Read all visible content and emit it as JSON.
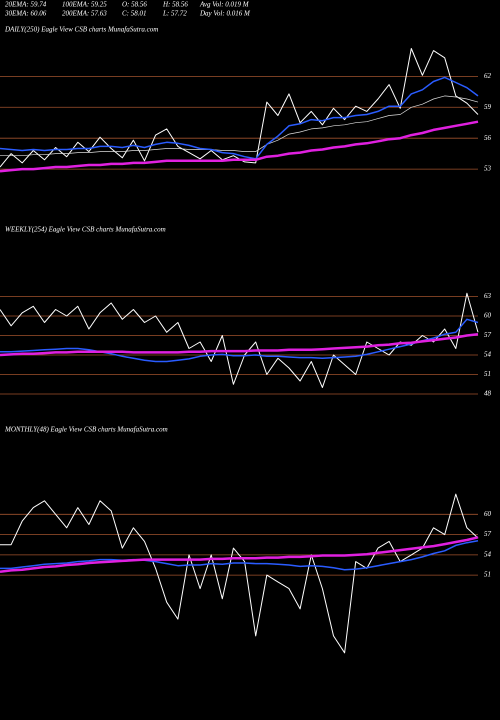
{
  "header": {
    "row1": [
      "20EMA: 59.74",
      "100EMA: 59.25",
      "O: 58.56",
      "H: 58.56",
      "Avg Vol: 0.019 M"
    ],
    "row2": [
      "30EMA: 60.06",
      "200EMA: 57.63",
      "C: 58.01",
      "L: 57.72",
      "Day Vol: 0.016  M"
    ]
  },
  "chart_data": [
    {
      "type": "line",
      "title": "DAILY(250) Eagle  View  CSB charts MunafaSutra.com",
      "ylim": [
        50,
        66.5
      ],
      "yticks": [
        62,
        59,
        56,
        53
      ],
      "grid": true,
      "series": [
        {
          "color": "#ffffff",
          "width": 1,
          "values": [
            53.2,
            54.5,
            53.6,
            54.8,
            53.9,
            55.1,
            54.2,
            55.6,
            54.7,
            56.1,
            55.0,
            54.1,
            55.8,
            53.8,
            56.3,
            56.9,
            55.2,
            54.6,
            54.0,
            54.8,
            53.9,
            54.3,
            53.7,
            53.6,
            59.5,
            58.2,
            60.3,
            57.5,
            58.6,
            57.3,
            58.9,
            57.8,
            59.1,
            58.6,
            59.8,
            61.2,
            58.9,
            64.7,
            62.1,
            64.5,
            63.8,
            60.1,
            59.4,
            58.3
          ]
        },
        {
          "color": "#dddddd",
          "width": 0.7,
          "values": [
            54.3,
            54.3,
            54.3,
            54.4,
            54.4,
            54.5,
            54.5,
            54.6,
            54.6,
            54.7,
            54.7,
            54.7,
            54.8,
            54.8,
            54.9,
            55.0,
            55.0,
            54.9,
            54.9,
            54.9,
            54.8,
            54.8,
            54.7,
            54.7,
            55.4,
            55.8,
            56.4,
            56.6,
            56.9,
            57.0,
            57.2,
            57.3,
            57.5,
            57.6,
            57.9,
            58.2,
            58.3,
            59.0,
            59.3,
            59.8,
            60.1,
            60.0,
            59.8,
            59.5
          ]
        },
        {
          "color": "#2a5cff",
          "width": 1.5,
          "values": [
            55.0,
            54.9,
            54.8,
            54.9,
            54.8,
            54.9,
            54.9,
            55.0,
            55.0,
            55.2,
            55.2,
            55.1,
            55.3,
            55.1,
            55.4,
            55.6,
            55.5,
            55.3,
            55.0,
            54.9,
            54.6,
            54.5,
            54.2,
            54.0,
            55.4,
            56.2,
            57.2,
            57.4,
            57.8,
            57.7,
            58.0,
            58.0,
            58.2,
            58.3,
            58.6,
            59.1,
            59.1,
            60.3,
            60.7,
            61.5,
            61.9,
            61.4,
            60.9,
            60.1
          ]
        },
        {
          "color": "#e020e0",
          "width": 2.5,
          "values": [
            52.8,
            52.9,
            53.0,
            53.0,
            53.1,
            53.2,
            53.2,
            53.3,
            53.4,
            53.4,
            53.5,
            53.5,
            53.6,
            53.6,
            53.7,
            53.8,
            53.8,
            53.8,
            53.8,
            53.8,
            53.8,
            53.9,
            53.9,
            53.9,
            54.2,
            54.3,
            54.5,
            54.6,
            54.8,
            54.9,
            55.1,
            55.2,
            55.4,
            55.5,
            55.7,
            55.9,
            56.0,
            56.3,
            56.5,
            56.8,
            57.0,
            57.2,
            57.4,
            57.6
          ]
        }
      ]
    },
    {
      "type": "line",
      "title": "WEEKLY(254) Eagle  View  CSB charts MunafaSutra.com",
      "ylim": [
        44,
        71.7
      ],
      "yticks": [
        63,
        60,
        57,
        54,
        51,
        48
      ],
      "grid": true,
      "series": [
        {
          "color": "#ffffff",
          "width": 1,
          "values": [
            61,
            58.5,
            60.5,
            61.5,
            59,
            61,
            60,
            61.5,
            58,
            60.5,
            62,
            59.5,
            61,
            59,
            60,
            57.5,
            59,
            55,
            56,
            53,
            57,
            49.5,
            54,
            56,
            51,
            53.5,
            52,
            50,
            53,
            49,
            54,
            52.5,
            51,
            56,
            55,
            54,
            56,
            55.5,
            57,
            56,
            58,
            55,
            63.5,
            57.5
          ]
        },
        {
          "color": "#2a5cff",
          "width": 1.5,
          "values": [
            54.5,
            54.5,
            54.6,
            54.7,
            54.8,
            54.9,
            55.0,
            55.0,
            54.8,
            54.5,
            54.2,
            53.8,
            53.5,
            53.2,
            53.0,
            53.0,
            53.2,
            53.4,
            53.8,
            54.0,
            54.1,
            53.9,
            53.9,
            54.0,
            53.8,
            53.8,
            53.7,
            53.6,
            53.6,
            53.5,
            53.6,
            53.7,
            53.8,
            54.1,
            54.5,
            54.9,
            55.3,
            55.7,
            56.2,
            56.6,
            57.2,
            57.5,
            59.5,
            59.0
          ]
        },
        {
          "color": "#e020e0",
          "width": 2.5,
          "values": [
            54.0,
            54.1,
            54.2,
            54.2,
            54.3,
            54.4,
            54.4,
            54.5,
            54.5,
            54.5,
            54.5,
            54.5,
            54.4,
            54.4,
            54.4,
            54.4,
            54.4,
            54.5,
            54.5,
            54.6,
            54.6,
            54.6,
            54.6,
            54.7,
            54.7,
            54.7,
            54.8,
            54.8,
            54.8,
            54.9,
            55.0,
            55.1,
            55.2,
            55.3,
            55.5,
            55.6,
            55.8,
            55.9,
            56.1,
            56.3,
            56.5,
            56.7,
            57.0,
            57.2
          ]
        }
      ]
    },
    {
      "type": "line",
      "title": "MONTHLY(48) Eagle  View  CSB charts MunafaSutra.com",
      "ylim": [
        34,
        71
      ],
      "yticks": [
        60,
        57,
        54,
        51
      ],
      "grid": true,
      "series": [
        {
          "color": "#ffffff",
          "width": 1,
          "values": [
            55.5,
            55.5,
            59,
            61,
            62,
            60,
            58,
            61,
            58.5,
            62,
            60.5,
            55,
            58,
            56,
            52,
            47,
            44.5,
            54,
            49,
            54,
            47.5,
            55,
            53,
            42,
            51,
            50,
            49,
            46,
            54,
            49,
            42,
            39.5,
            53,
            52,
            55,
            56,
            53,
            54,
            55,
            58,
            57,
            63,
            58,
            56.5
          ]
        },
        {
          "color": "#2a5cff",
          "width": 1.5,
          "values": [
            52,
            52,
            52.2,
            52.4,
            52.6,
            52.7,
            52.8,
            53,
            53.1,
            53.3,
            53.3,
            53.2,
            53.3,
            53.2,
            53,
            52.7,
            52.4,
            52.5,
            52.5,
            52.7,
            52.6,
            52.8,
            52.8,
            52.7,
            52.7,
            52.6,
            52.5,
            52.3,
            52.4,
            52.3,
            52.1,
            51.8,
            51.9,
            52.1,
            52.4,
            52.7,
            53,
            53.3,
            53.7,
            54.2,
            54.6,
            55.4,
            55.8,
            56.1
          ]
        },
        {
          "color": "#e020e0",
          "width": 2.5,
          "values": [
            51.5,
            51.7,
            51.8,
            52,
            52.2,
            52.3,
            52.5,
            52.6,
            52.8,
            52.9,
            53,
            53.1,
            53.2,
            53.3,
            53.3,
            53.3,
            53.3,
            53.3,
            53.3,
            53.4,
            53.4,
            53.5,
            53.5,
            53.5,
            53.6,
            53.6,
            53.7,
            53.7,
            53.8,
            53.9,
            53.9,
            53.9,
            54,
            54.1,
            54.3,
            54.5,
            54.7,
            54.9,
            55.1,
            55.3,
            55.6,
            55.9,
            56.2,
            56.6
          ]
        }
      ]
    }
  ]
}
